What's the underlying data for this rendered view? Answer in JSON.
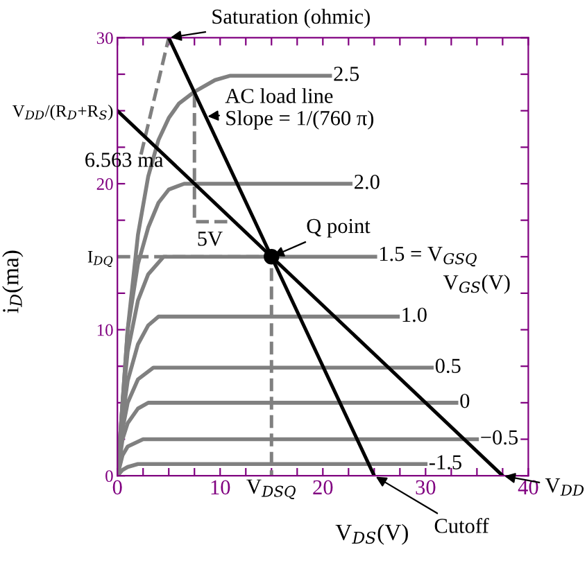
{
  "chart_data": {
    "type": "line",
    "xlabel": "V$_{DS}$(V)",
    "ylabel": "i$_{D}$(ma)",
    "xlim": [
      0,
      40
    ],
    "ylim": [
      0,
      30
    ],
    "xticks": [
      0,
      {
        "value": 2.5,
        "label": null
      },
      {
        "value": 5,
        "label": null
      },
      {
        "value": 7.5,
        "label": null
      },
      10,
      {
        "value": 12.5,
        "label": null
      },
      {
        "value": 15,
        "label": "V$_{DSQ}$"
      },
      {
        "value": 17.5,
        "label": null
      },
      20,
      {
        "value": 22.5,
        "label": null
      },
      {
        "value": 25,
        "label": null
      },
      {
        "value": 27.5,
        "label": null
      },
      30,
      {
        "value": 32.5,
        "label": null
      },
      {
        "value": 35,
        "label": null
      },
      {
        "value": 37.5,
        "label": null
      },
      40
    ],
    "yticks": [
      0,
      {
        "value": 2.5,
        "label": null
      },
      {
        "value": 5,
        "label": null
      },
      {
        "value": 7.5,
        "label": null
      },
      10,
      {
        "value": 12.5,
        "label": null
      },
      {
        "value": 15,
        "label": "I$_{DQ}$"
      },
      {
        "value": 17.5,
        "label": null
      },
      20,
      {
        "value": 22.5,
        "label": null
      },
      {
        "value": 25,
        "label": "V$_{DD}$/(R$_{D}$+R$_{S}$)"
      },
      {
        "value": 27.5,
        "label": null
      },
      30
    ],
    "grid": false,
    "series": [
      {
        "name": "2.5",
        "color": "#808080",
        "x": [
          0,
          1,
          2,
          3,
          4,
          5,
          6,
          7.5,
          9.5,
          11,
          20.7
        ],
        "values": [
          0,
          10,
          16.5,
          20.5,
          23,
          24.5,
          25.5,
          26.3,
          27.1,
          27.4,
          27.4
        ]
      },
      {
        "name": "2.0",
        "color": "#808080",
        "x": [
          0,
          1,
          2,
          3,
          4,
          5,
          6.5,
          22.7
        ],
        "values": [
          0,
          10,
          14.5,
          17,
          18.7,
          19.6,
          20,
          20
        ]
      },
      {
        "name": "1.5 = V$_{GSQ}$",
        "color": "#808080",
        "x": [
          0,
          0.5,
          1,
          2,
          3,
          4.5,
          25.1
        ],
        "values": [
          0,
          5,
          8.5,
          12,
          13.8,
          15,
          15
        ]
      },
      {
        "name": "1.0",
        "color": "#808080",
        "x": [
          0,
          0.5,
          1,
          2,
          3,
          4,
          27.3
        ],
        "values": [
          0,
          4,
          6.5,
          9,
          10.3,
          10.9,
          10.9
        ]
      },
      {
        "name": "0.5",
        "color": "#808080",
        "x": [
          0,
          0.5,
          1,
          2,
          3.5,
          30.6
        ],
        "values": [
          0,
          3.2,
          5,
          6.6,
          7.4,
          7.4
        ]
      },
      {
        "name": "0",
        "color": "#808080",
        "x": [
          0,
          0.5,
          1,
          2,
          3,
          33
        ],
        "values": [
          0,
          2.5,
          3.6,
          4.6,
          5,
          5
        ]
      },
      {
        "name": "−0.5",
        "color": "#808080",
        "x": [
          0,
          0.5,
          1,
          2.5,
          35
        ],
        "values": [
          0,
          1.4,
          2,
          2.5,
          2.5
        ]
      },
      {
        "name": "-1.5",
        "color": "#808080",
        "x": [
          0,
          0.5,
          1,
          2,
          30
        ],
        "values": [
          0,
          0.4,
          0.6,
          0.8,
          0.8
        ]
      },
      {
        "color": "#808080",
        "line_style": "dashed",
        "x": [
          2.3,
          5
        ],
        "values": [
          22,
          30
        ]
      },
      {
        "color": "#808080",
        "line_style": "dashed",
        "x": [
          7.5,
          7.5,
          11
        ],
        "values": [
          26.1,
          17.4,
          17.4
        ]
      },
      {
        "color": "#808080",
        "line_style": "dashed",
        "x": [
          0,
          15,
          15
        ],
        "values": [
          15,
          15,
          0
        ]
      },
      {
        "color": "#000000",
        "x": [
          5,
          25
        ],
        "values": [
          30,
          0
        ]
      },
      {
        "color": "#000000",
        "x": [
          0,
          37.5
        ],
        "values": [
          25,
          0
        ]
      },
      {
        "type": "scatter",
        "color": "#000000",
        "marker": "circle",
        "x": [
          15
        ],
        "values": [
          15
        ]
      }
    ],
    "annotations": [
      {
        "text": "Saturation (ohmic)",
        "x": 5,
        "y": 30
      },
      {
        "text": "AC load line\nSlope = 1/(760 π)",
        "x": 8.6,
        "y": 24.6
      },
      {
        "text": "Q point",
        "x": 15,
        "y": 15
      },
      {
        "text": "V$_{DD}$",
        "x": 37.5,
        "y": 0
      },
      {
        "text": "Cutoff",
        "x": 25,
        "y": 0
      },
      "5V",
      "6.563 ma",
      "V$_{GS}$(V)"
    ]
  }
}
